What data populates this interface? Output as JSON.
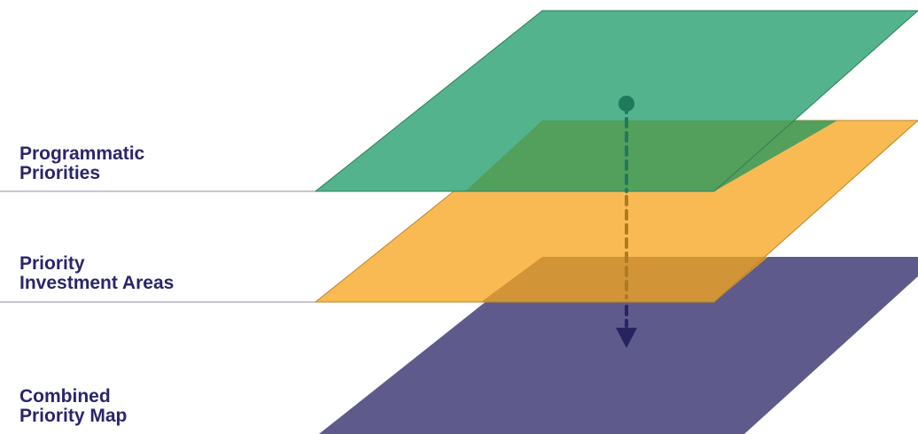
{
  "colors": {
    "label_text": "#2b2569",
    "divider": "#8c8ca6",
    "layer_top": "#52b38c",
    "layer_middle": "#f9ba54",
    "layer_bottom": "#5e5a8b",
    "overlap_top_middle": "#539f5c",
    "overlap_middle_bottom": "#d19437",
    "edge_top": "#2f7d5b",
    "edge_middle": "#b98523",
    "arrow_top": "#1f7a5c",
    "arrow_middle": "#b07a22",
    "arrow_bottom": "#262460"
  },
  "layers": [
    {
      "id": "top",
      "label_lines": [
        "Programmatic",
        "Priorities"
      ]
    },
    {
      "id": "middle",
      "label_lines": [
        "Priority",
        "Investment Areas"
      ]
    },
    {
      "id": "bottom",
      "label_lines": [
        "Combined",
        "Priority Map"
      ]
    }
  ],
  "arrow": {
    "start_icon": "dot-icon",
    "end_icon": "arrowhead-down-icon",
    "style": "dashed"
  }
}
